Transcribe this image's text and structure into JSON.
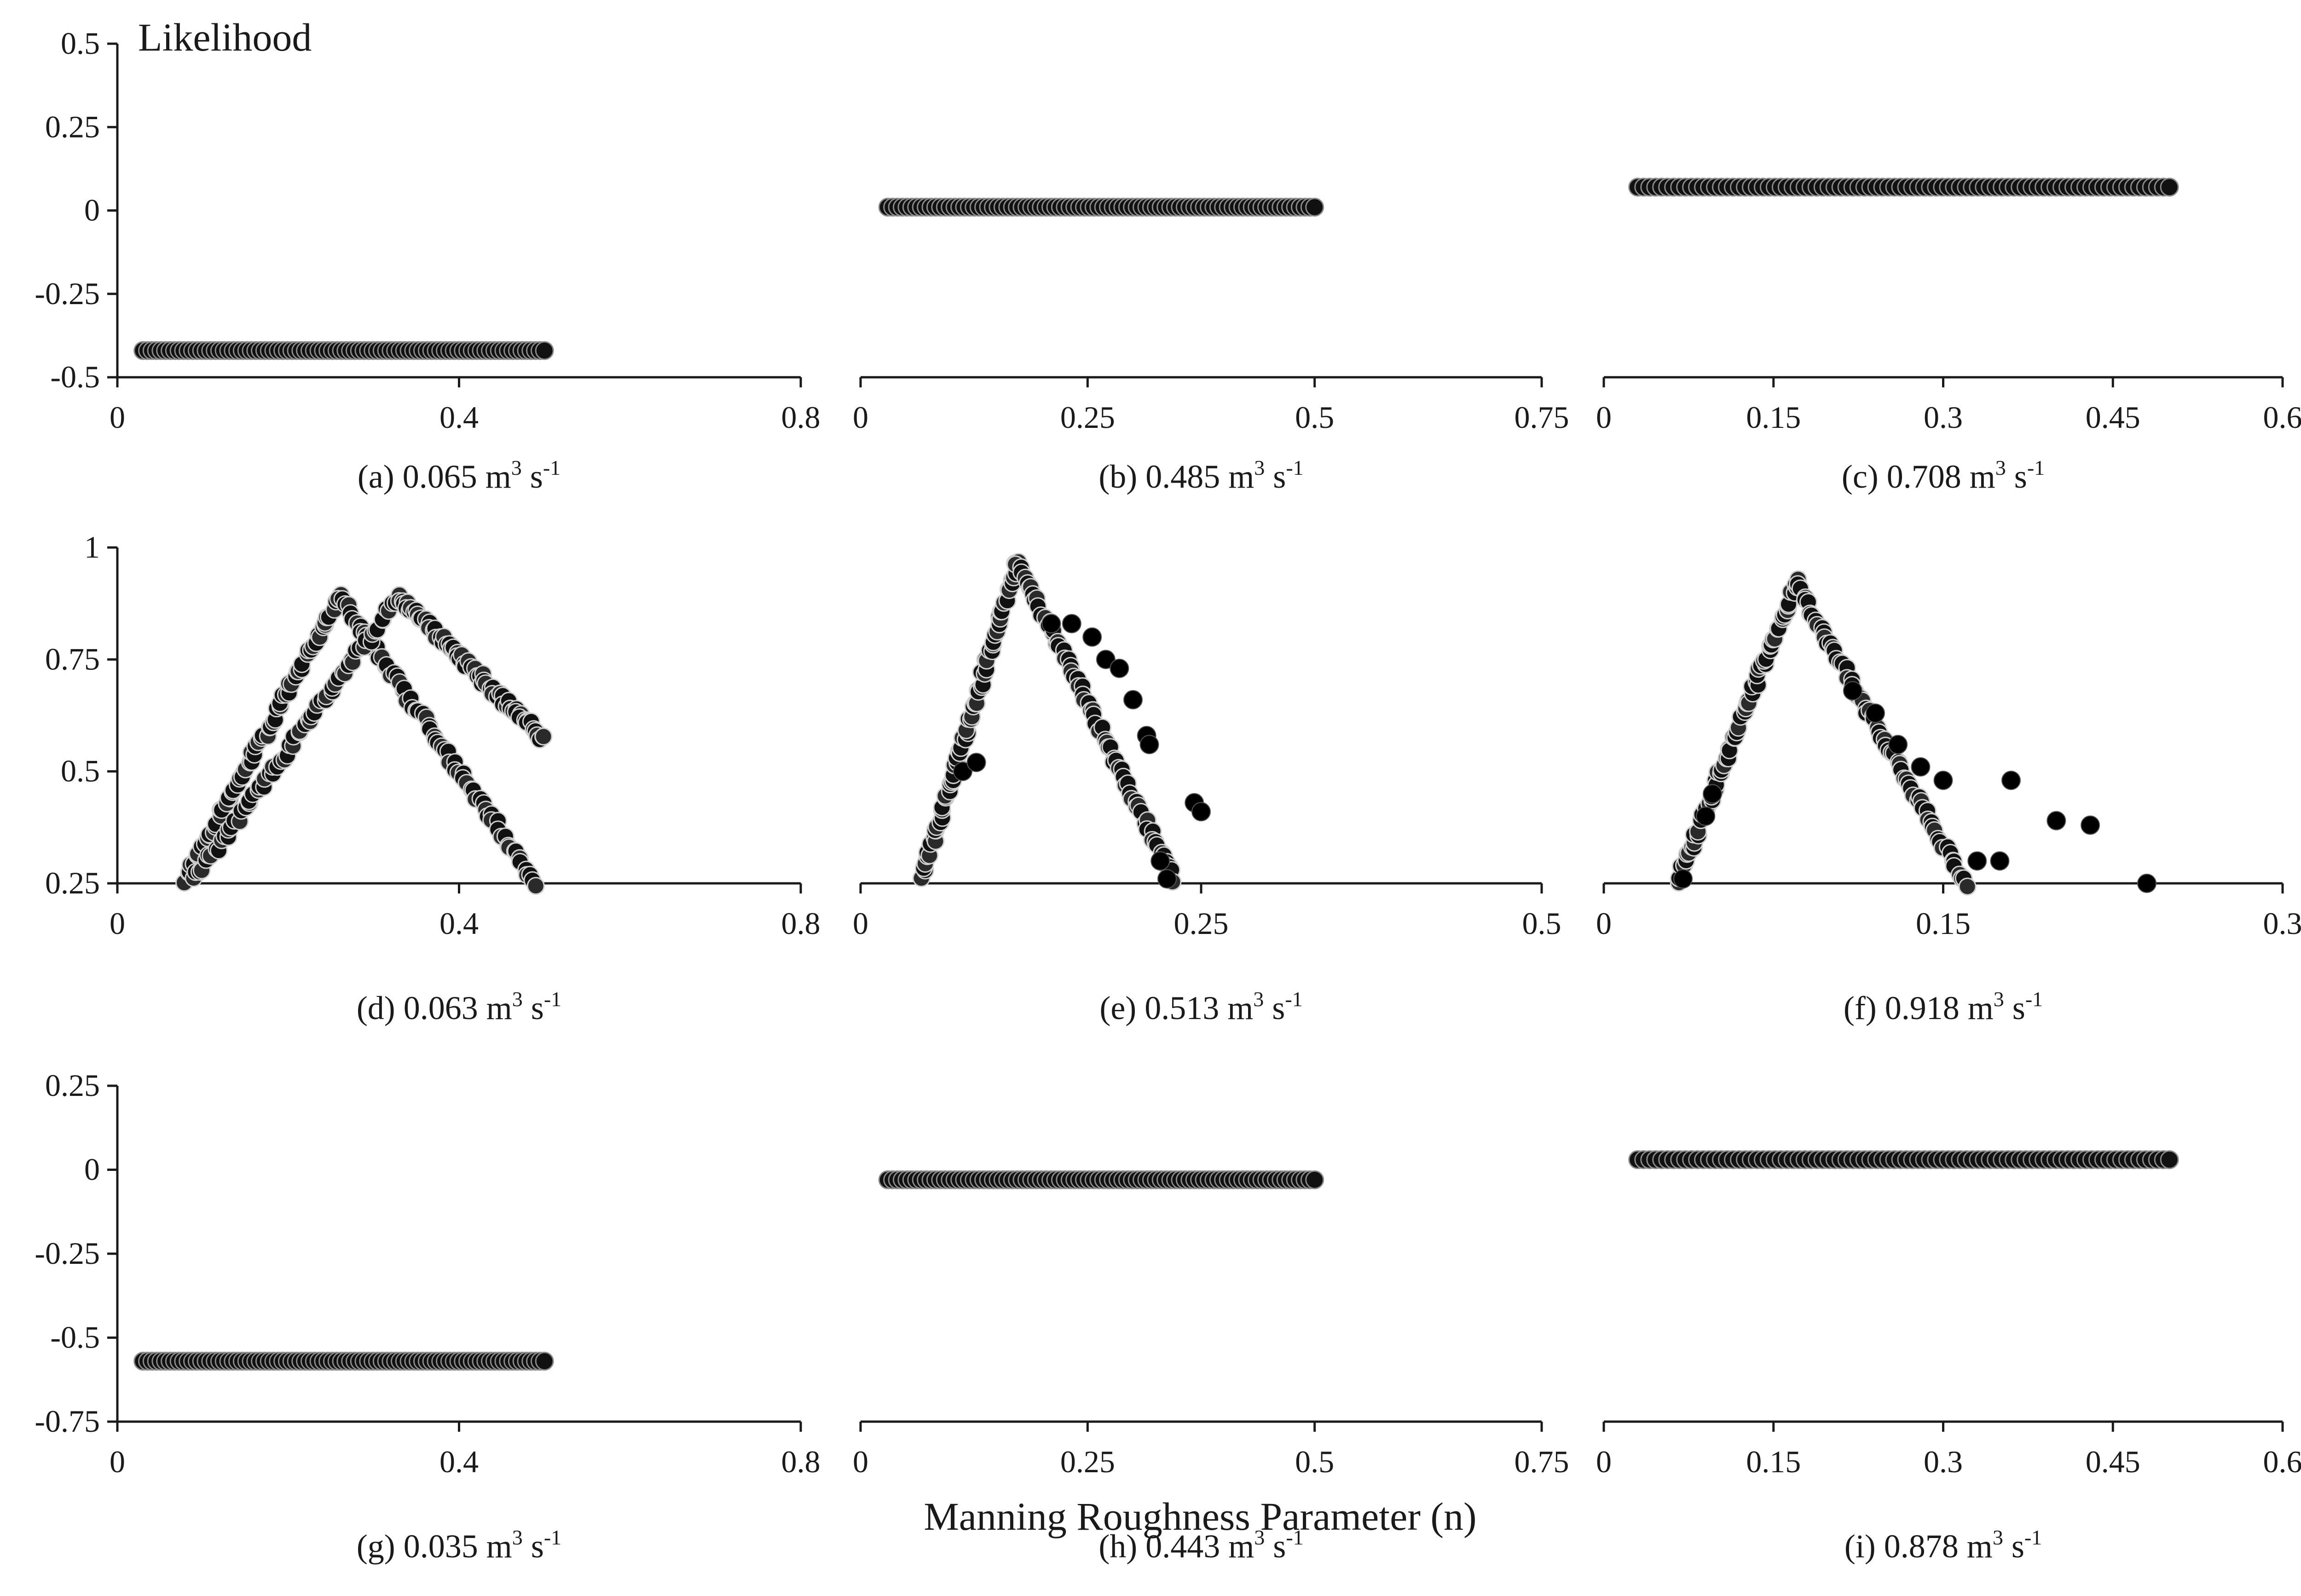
{
  "figure": {
    "y_axis_title": "Likelihood",
    "x_axis_title": "Manning Roughness Parameter (n)",
    "unit": "m",
    "unit_sup": "3",
    "unit_suffix": " s",
    "unit_suffix_sup": "-1"
  },
  "chart_data": [
    {
      "id": "a",
      "type": "scatter",
      "caption": "(a) 0.065",
      "discharge": 0.065,
      "xlim": [
        0,
        0.8
      ],
      "xticks": [
        "0",
        "0.4",
        "0.8"
      ],
      "ylim": [
        -0.5,
        0.5
      ],
      "yticks": [
        "-0.5",
        "-0.25",
        "0",
        "0.25",
        "0.5"
      ],
      "series": [
        {
          "name": "constant",
          "x_range": [
            0.03,
            0.5
          ],
          "y": -0.42
        }
      ]
    },
    {
      "id": "b",
      "type": "scatter",
      "caption": "(b) 0.485",
      "discharge": 0.485,
      "xlim": [
        0,
        0.75
      ],
      "xticks": [
        "0",
        "0.25",
        "0.5",
        "0.75"
      ],
      "ylim": [
        -0.5,
        0.5
      ],
      "yticks": [],
      "series": [
        {
          "name": "constant",
          "x_range": [
            0.03,
            0.5
          ],
          "y": 0.01
        }
      ]
    },
    {
      "id": "c",
      "type": "scatter",
      "caption": "(c) 0.708",
      "discharge": 0.708,
      "xlim": [
        0,
        0.6
      ],
      "xticks": [
        "0",
        "0.15",
        "0.3",
        "0.45",
        "0.6"
      ],
      "ylim": [
        -0.5,
        0.5
      ],
      "yticks": [],
      "series": [
        {
          "name": "constant",
          "x_range": [
            0.03,
            0.5
          ],
          "y": 0.07
        }
      ]
    },
    {
      "id": "d",
      "type": "scatter",
      "caption": "(d) 0.063",
      "discharge": 0.063,
      "xlim": [
        0,
        0.8
      ],
      "xticks": [
        "0",
        "0.4",
        "0.8"
      ],
      "ylim": [
        0.25,
        1
      ],
      "yticks": [
        "0.25",
        "0.5",
        "0.75",
        "1"
      ],
      "series": [
        {
          "name": "dense-1",
          "points": [
            [
              0.08,
              0.26
            ],
            [
              0.26,
              0.89
            ],
            [
              0.49,
              0.25
            ]
          ]
        },
        {
          "name": "dense-2",
          "points": [
            [
              0.09,
              0.26
            ],
            [
              0.33,
              0.89
            ],
            [
              0.5,
              0.57
            ]
          ]
        }
      ]
    },
    {
      "id": "e",
      "type": "scatter",
      "caption": "(e) 0.513",
      "discharge": 0.513,
      "xlim": [
        0,
        0.5
      ],
      "xticks": [
        "0",
        "0.25",
        "0.5"
      ],
      "ylim": [
        0.25,
        1
      ],
      "yticks": [],
      "series": [
        {
          "name": "dense",
          "points": [
            [
              0.045,
              0.26
            ],
            [
              0.115,
              0.97
            ],
            [
              0.23,
              0.26
            ]
          ]
        },
        {
          "name": "sparse",
          "points": [
            [
              0.075,
              0.5
            ],
            [
              0.085,
              0.52
            ],
            [
              0.14,
              0.83
            ],
            [
              0.155,
              0.83
            ],
            [
              0.17,
              0.8
            ],
            [
              0.18,
              0.75
            ],
            [
              0.19,
              0.73
            ],
            [
              0.2,
              0.66
            ],
            [
              0.21,
              0.58
            ],
            [
              0.212,
              0.56
            ],
            [
              0.245,
              0.43
            ],
            [
              0.25,
              0.41
            ],
            [
              0.22,
              0.3
            ],
            [
              0.225,
              0.26
            ]
          ]
        }
      ]
    },
    {
      "id": "f",
      "type": "scatter",
      "caption": "(f) 0.918",
      "discharge": 0.918,
      "xlim": [
        0,
        0.3
      ],
      "xticks": [
        "0",
        "0.15",
        "0.3"
      ],
      "ylim": [
        0.25,
        1
      ],
      "yticks": [],
      "series": [
        {
          "name": "dense",
          "points": [
            [
              0.033,
              0.26
            ],
            [
              0.085,
              0.92
            ],
            [
              0.16,
              0.25
            ]
          ]
        },
        {
          "name": "sparse",
          "points": [
            [
              0.035,
              0.26
            ],
            [
              0.045,
              0.4
            ],
            [
              0.048,
              0.45
            ],
            [
              0.11,
              0.68
            ],
            [
              0.12,
              0.63
            ],
            [
              0.13,
              0.56
            ],
            [
              0.14,
              0.51
            ],
            [
              0.15,
              0.48
            ],
            [
              0.165,
              0.3
            ],
            [
              0.175,
              0.3
            ],
            [
              0.18,
              0.48
            ],
            [
              0.2,
              0.39
            ],
            [
              0.215,
              0.38
            ],
            [
              0.24,
              0.25
            ]
          ]
        }
      ]
    },
    {
      "id": "g",
      "type": "scatter",
      "caption": "(g) 0.035",
      "discharge": 0.035,
      "xlim": [
        0,
        0.8
      ],
      "xticks": [
        "0",
        "0.4",
        "0.8"
      ],
      "ylim": [
        -0.75,
        0.25
      ],
      "yticks": [
        "-0.75",
        "-0.5",
        "-0.25",
        "0",
        "0.25"
      ],
      "series": [
        {
          "name": "constant",
          "x_range": [
            0.03,
            0.5
          ],
          "y": -0.57
        }
      ]
    },
    {
      "id": "h",
      "type": "scatter",
      "caption": "(h) 0.443",
      "discharge": 0.443,
      "xlim": [
        0,
        0.75
      ],
      "xticks": [
        "0",
        "0.25",
        "0.5",
        "0.75"
      ],
      "ylim": [
        -0.75,
        0.25
      ],
      "yticks": [],
      "series": [
        {
          "name": "constant",
          "x_range": [
            0.03,
            0.5
          ],
          "y": -0.03
        }
      ]
    },
    {
      "id": "i",
      "type": "scatter",
      "caption": "(i) 0.878",
      "discharge": 0.878,
      "xlim": [
        0,
        0.6
      ],
      "xticks": [
        "0",
        "0.15",
        "0.3",
        "0.45",
        "0.6"
      ],
      "ylim": [
        -0.75,
        0.25
      ],
      "yticks": [],
      "series": [
        {
          "name": "constant",
          "x_range": [
            0.03,
            0.5
          ],
          "y": 0.03
        }
      ]
    }
  ]
}
